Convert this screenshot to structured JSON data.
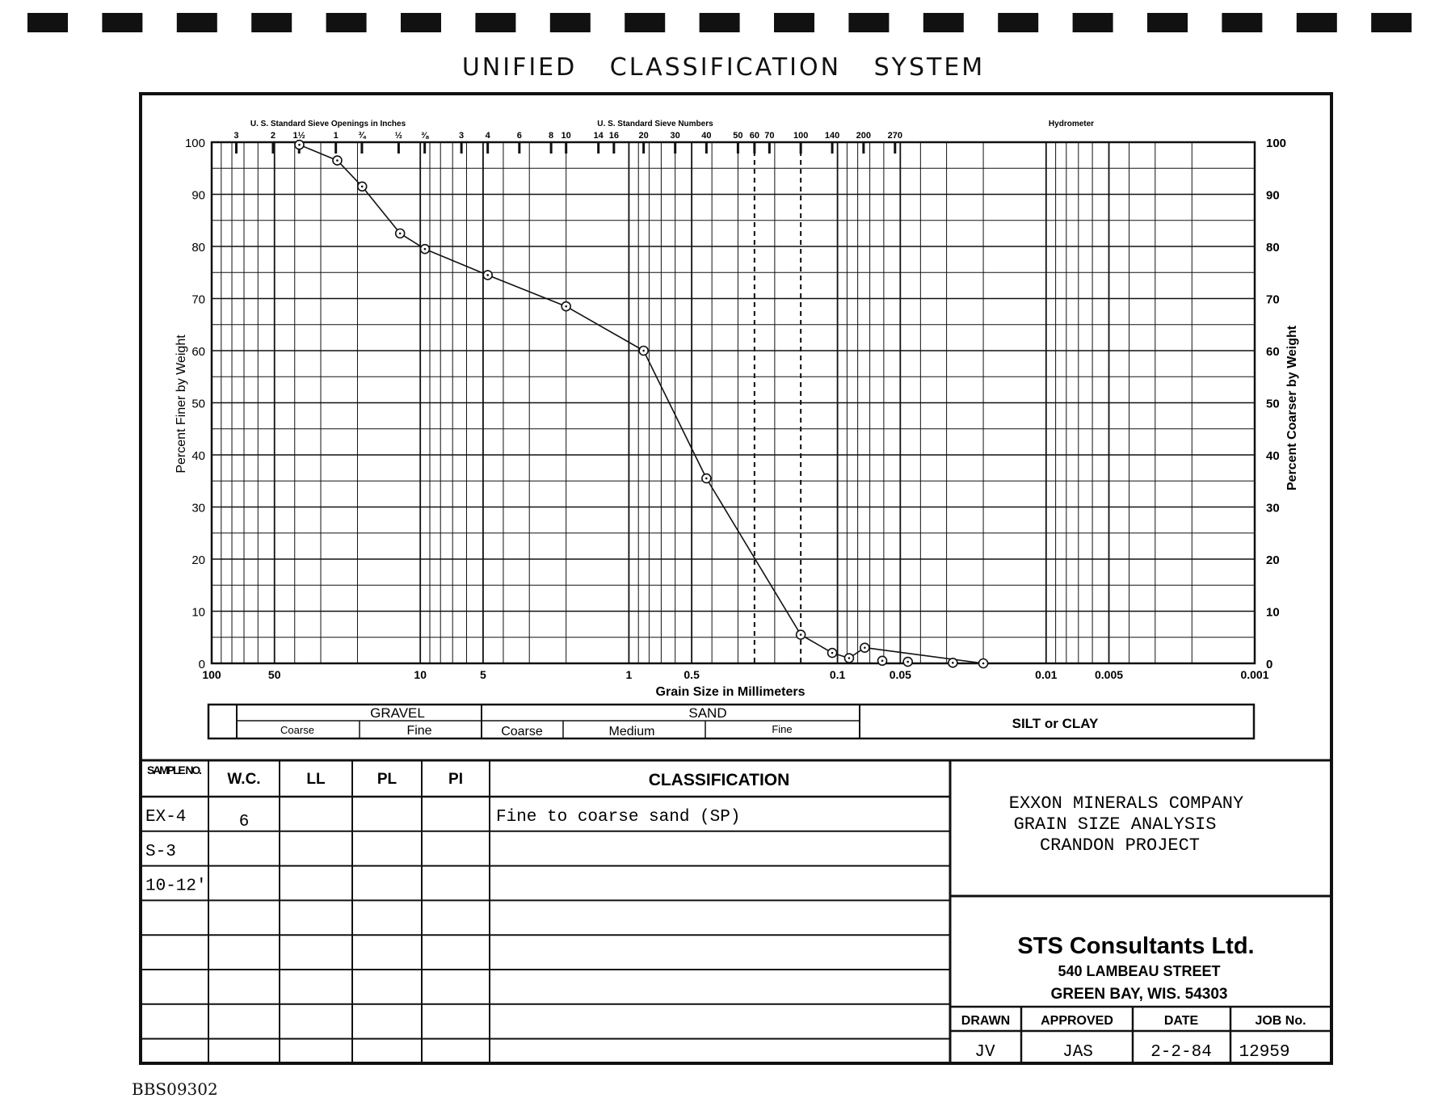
{
  "title": "UNIFIED CLASSIFICATION SYSTEM",
  "doc_id": "BBS09302",
  "chart_data": {
    "type": "scatter",
    "title": "",
    "xlabel": "Grain Size in Millimeters",
    "ylabel": "Percent Finer by Weight",
    "ylabel_right": "Percent Coarser by Weight",
    "x_scale": "log",
    "x_reversed": true,
    "xlim": [
      100,
      0.001
    ],
    "ylim": [
      0,
      100
    ],
    "x_ticks": [
      {
        "v": 100,
        "label": "100"
      },
      {
        "v": 50,
        "label": "50"
      },
      {
        "v": 10,
        "label": "10"
      },
      {
        "v": 5,
        "label": "5"
      },
      {
        "v": 1,
        "label": "1"
      },
      {
        "v": 0.5,
        "label": "0.5"
      },
      {
        "v": 0.1,
        "label": "0.1"
      },
      {
        "v": 0.05,
        "label": "0.05"
      },
      {
        "v": 0.01,
        "label": "0.01"
      },
      {
        "v": 0.005,
        "label": "0.005"
      },
      {
        "v": 0.001,
        "label": "0.001"
      }
    ],
    "y_ticks": [
      "0",
      "10",
      "20",
      "30",
      "40",
      "50",
      "60",
      "70",
      "80",
      "90",
      "100"
    ],
    "y_right_ticks": [
      "100",
      "90",
      "80",
      "70",
      "60",
      "50",
      "40",
      "30",
      "20",
      "10",
      "0"
    ],
    "sieve_inches_label": "U. S. Standard Sieve Openings in Inches",
    "sieve_inches": [
      {
        "v": 76.2,
        "label": "3"
      },
      {
        "v": 50.8,
        "label": "2"
      },
      {
        "v": 38.1,
        "label": "1½"
      },
      {
        "v": 25.4,
        "label": "1"
      },
      {
        "v": 19.05,
        "label": "¾"
      },
      {
        "v": 12.7,
        "label": "½"
      },
      {
        "v": 9.525,
        "label": "⅜"
      }
    ],
    "sieve_numbers_label": "U. S. Standard Sieve Numbers",
    "sieve_numbers": [
      {
        "v": 6.35,
        "label": "3"
      },
      {
        "v": 4.75,
        "label": "4"
      },
      {
        "v": 3.35,
        "label": "6"
      },
      {
        "v": 2.36,
        "label": "8"
      },
      {
        "v": 2.0,
        "label": "10"
      },
      {
        "v": 1.4,
        "label": "14"
      },
      {
        "v": 1.18,
        "label": "16"
      },
      {
        "v": 0.85,
        "label": "20"
      },
      {
        "v": 0.6,
        "label": "30"
      },
      {
        "v": 0.425,
        "label": "40"
      },
      {
        "v": 0.3,
        "label": "50"
      },
      {
        "v": 0.25,
        "label": "60"
      },
      {
        "v": 0.212,
        "label": "70"
      },
      {
        "v": 0.15,
        "label": "100"
      },
      {
        "v": 0.106,
        "label": "140"
      },
      {
        "v": 0.075,
        "label": "200"
      },
      {
        "v": 0.053,
        "label": "270"
      }
    ],
    "hydrometer_label": "Hydrometer",
    "dashed_lines": [
      0.25,
      0.15
    ],
    "series": [
      {
        "name": "",
        "points": [
          {
            "x": 38,
            "y": 99.5
          },
          {
            "x": 25,
            "y": 96.5
          },
          {
            "x": 19,
            "y": 91.5
          },
          {
            "x": 12.5,
            "y": 82.5
          },
          {
            "x": 9.5,
            "y": 79.5
          },
          {
            "x": 4.75,
            "y": 74.5
          },
          {
            "x": 2.0,
            "y": 68.5
          },
          {
            "x": 0.85,
            "y": 60
          },
          {
            "x": 0.425,
            "y": 35.5
          },
          {
            "x": 0.15,
            "y": 5.5
          },
          {
            "x": 0.106,
            "y": 2
          },
          {
            "x": 0.088,
            "y": 1
          },
          {
            "x": 0.074,
            "y": 3
          },
          {
            "x": 0.061,
            "y": 0.5
          },
          {
            "x": 0.046,
            "y": 0.3
          },
          {
            "x": 0.028,
            "y": 0.1
          },
          {
            "x": 0.02,
            "y": 0
          }
        ]
      }
    ]
  },
  "soil_bar": {
    "gravel": "GRAVEL",
    "sand": "SAND",
    "silt_clay": "SILT or CLAY",
    "coarse": "Coarse",
    "fine": "Fine",
    "sand_coarse": "Coarse",
    "medium": "Medium",
    "sand_fine": "Fine"
  },
  "table": {
    "headers": [
      "SAMPLE NO.",
      "W.C.",
      "LL",
      "PL",
      "PI",
      "CLASSIFICATION"
    ],
    "rows": [
      [
        "EX-4",
        "6",
        "",
        "",
        "",
        "Fine to coarse sand (SP)"
      ],
      [
        "S-3",
        "",
        "",
        "",
        "",
        ""
      ],
      [
        "10-12'",
        "",
        "",
        "",
        "",
        ""
      ],
      [
        "",
        "",
        "",
        "",
        "",
        ""
      ],
      [
        "",
        "",
        "",
        "",
        "",
        ""
      ],
      [
        "",
        "",
        "",
        "",
        "",
        ""
      ],
      [
        "",
        "",
        "",
        "",
        "",
        ""
      ],
      [
        "",
        "",
        "",
        "",
        "",
        ""
      ]
    ]
  },
  "project": [
    "EXXON MINERALS COMPANY",
    "GRAIN SIZE ANALYSIS",
    "CRANDON PROJECT"
  ],
  "company": {
    "name": "STS Consultants Ltd.",
    "street": "540 LAMBEAU STREET",
    "city": "GREEN BAY, WIS. 54303"
  },
  "signoff": {
    "headers": [
      "DRAWN",
      "APPROVED",
      "DATE",
      "JOB No."
    ],
    "values": [
      "JV",
      "JAS",
      "2-2-84",
      "12959"
    ]
  }
}
